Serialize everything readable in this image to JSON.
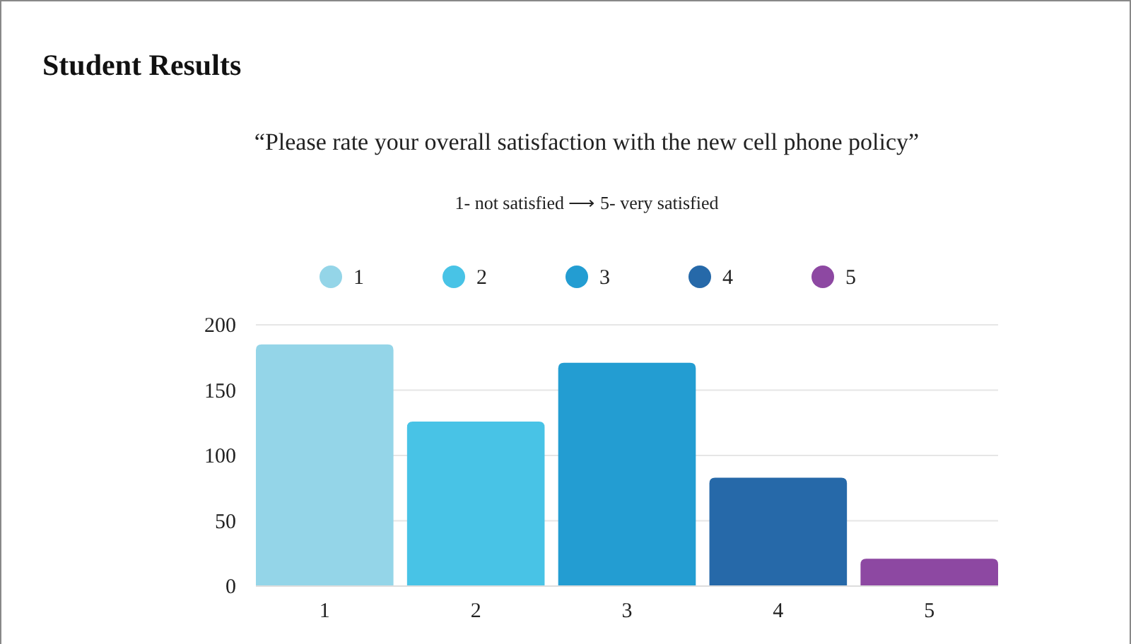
{
  "chart_data": {
    "type": "bar",
    "title": "Student Results",
    "subtitle": "“Please rate your overall satisfaction with the new cell phone policy”",
    "annotations": [
      "1- not satisfied ⟶ 5- very satisfied"
    ],
    "categories": [
      "1",
      "2",
      "3",
      "4",
      "5"
    ],
    "stacked": true,
    "series": [
      {
        "name": "1",
        "color": "#94d5e8",
        "values": [
          185,
          null,
          null,
          null,
          null
        ]
      },
      {
        "name": "2",
        "color": "#48c3e6",
        "values": [
          null,
          126,
          null,
          null,
          null
        ]
      },
      {
        "name": "3",
        "color": "#239dd2",
        "values": [
          null,
          null,
          171,
          null,
          null
        ]
      },
      {
        "name": "4",
        "color": "#2669a9",
        "values": [
          null,
          null,
          null,
          83,
          null
        ]
      },
      {
        "name": "5",
        "color": "#8d48a2",
        "values": [
          null,
          null,
          null,
          null,
          21
        ]
      }
    ],
    "ylim": [
      0,
      200
    ],
    "yticks": [
      0,
      50,
      100,
      150,
      200
    ],
    "grid": "y",
    "legend": "top"
  }
}
